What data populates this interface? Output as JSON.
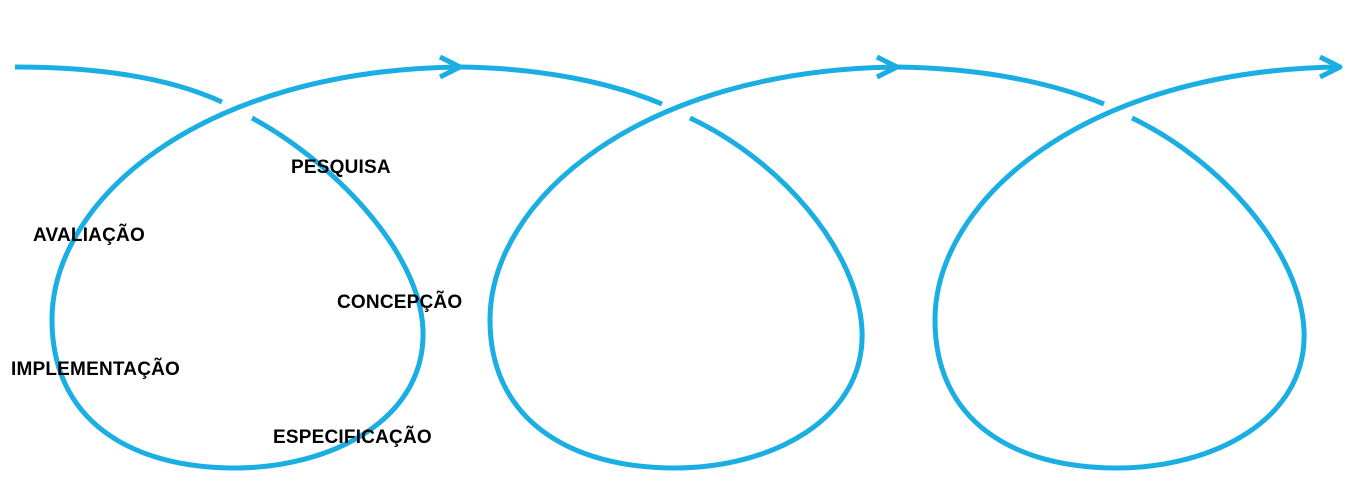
{
  "diagram": {
    "stroke_color": "#1AAEE3",
    "background_color": "#FFFFFF",
    "text_color": "#000000",
    "phases": {
      "pesquisa": "PESQUISA",
      "concepcao": "CONCEPÇÃO",
      "especificacao": "ESPECIFICAÇÃO",
      "implementacao": "IMPLEMENTAÇÃO",
      "avaliacao": "AVALIAÇÃO"
    }
  }
}
